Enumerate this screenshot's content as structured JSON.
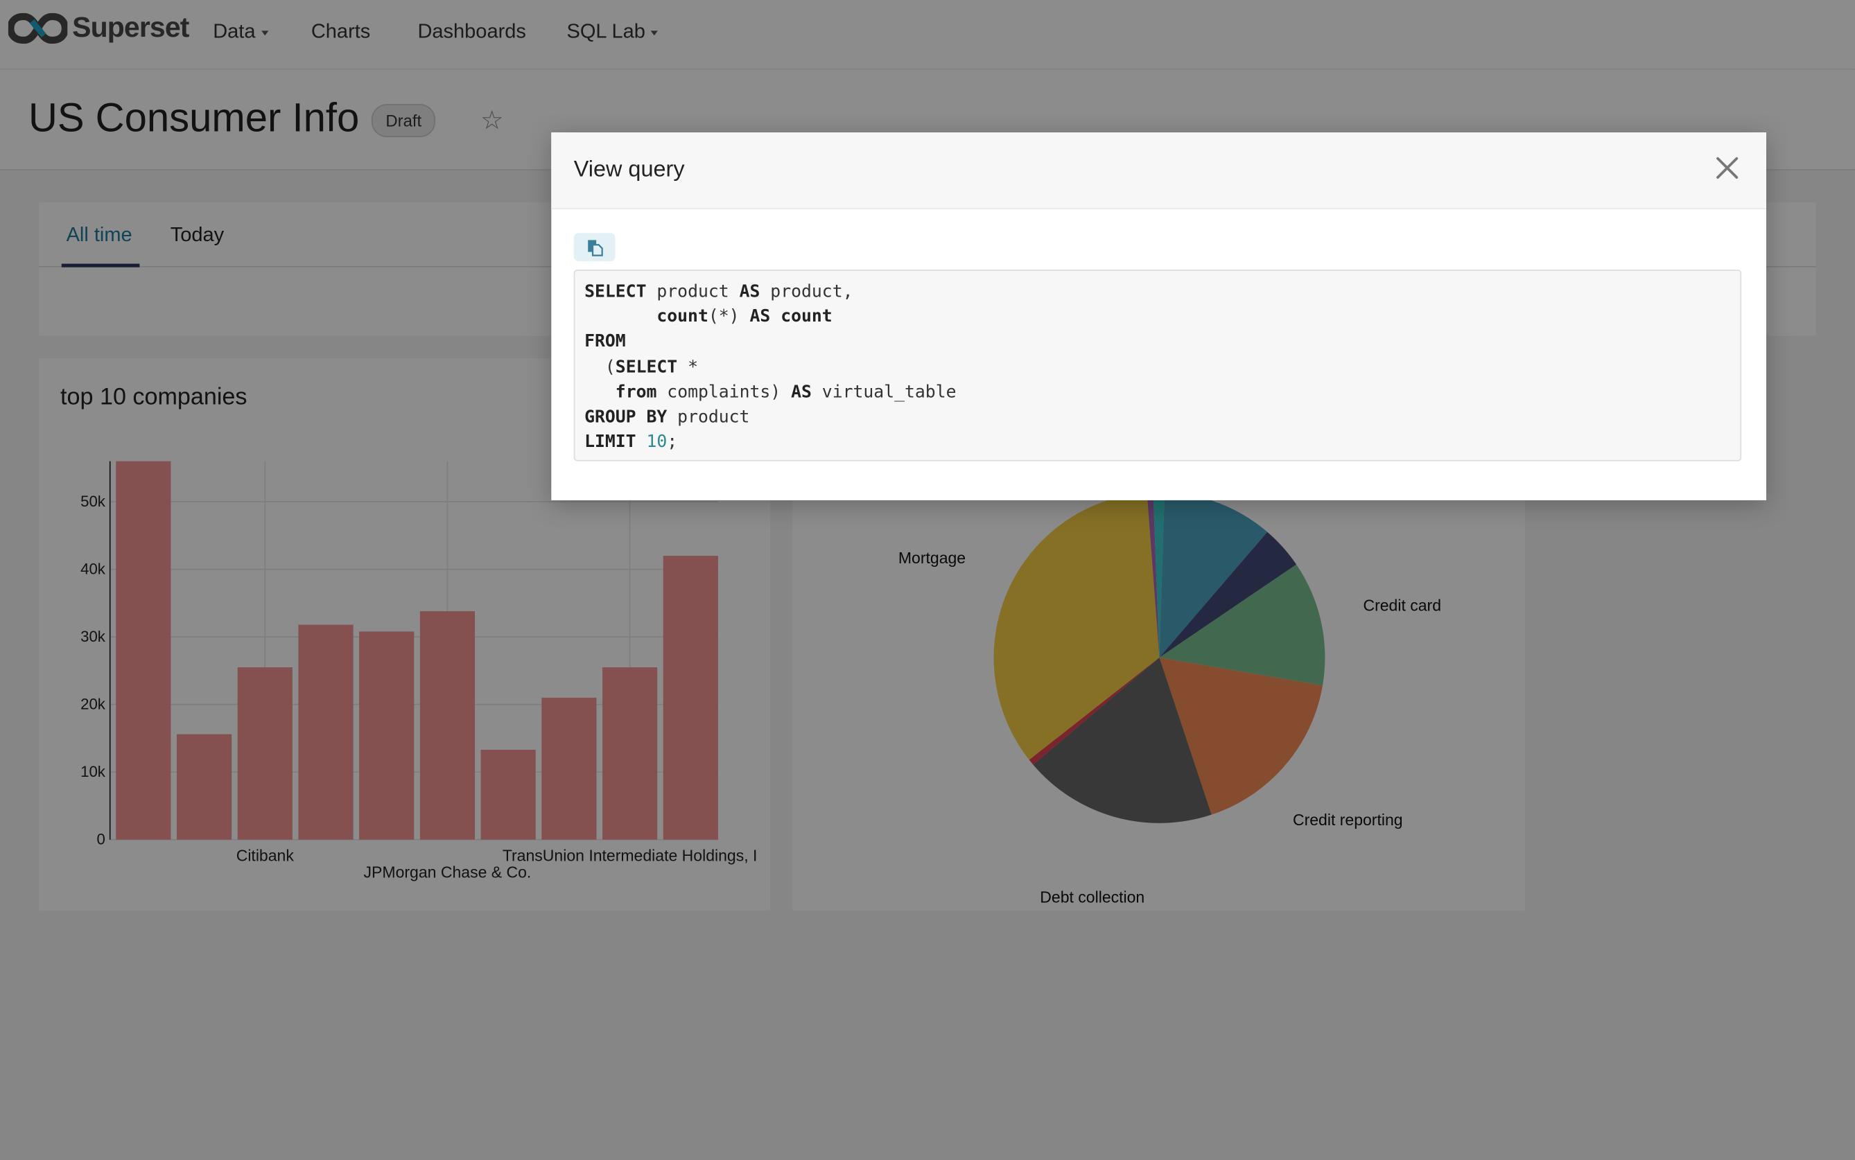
{
  "navbar": {
    "brand": "Superset",
    "items": [
      {
        "label": "Data",
        "has_dropdown": true
      },
      {
        "label": "Charts",
        "has_dropdown": false
      },
      {
        "label": "Dashboards",
        "has_dropdown": false
      },
      {
        "label": "SQL Lab",
        "has_dropdown": true
      }
    ]
  },
  "dashboard": {
    "title": "US Consumer Info",
    "status_badge": "Draft",
    "favorite_icon": "star-outline-icon"
  },
  "tabs": [
    {
      "label": "All time",
      "active": true
    },
    {
      "label": "Today",
      "active": false
    }
  ],
  "colors": {
    "accent": "#1f7a9c",
    "tab_underline": "#2d3a5e"
  },
  "modal": {
    "title": "View query",
    "close_icon": "close-icon",
    "copy_icon": "copy-icon",
    "sql": [
      [
        {
          "t": "SELECT",
          "k": true
        },
        {
          "t": " product "
        },
        {
          "t": "AS",
          "k": true
        },
        {
          "t": " product,"
        }
      ],
      [
        {
          "t": "       "
        },
        {
          "t": "count",
          "k": true
        },
        {
          "t": "(*) "
        },
        {
          "t": "AS",
          "k": true
        },
        {
          "t": " "
        },
        {
          "t": "count",
          "k": true
        }
      ],
      [
        {
          "t": "FROM",
          "k": true
        }
      ],
      [
        {
          "t": "  ("
        },
        {
          "t": "SELECT",
          "k": true
        },
        {
          "t": " *"
        }
      ],
      [
        {
          "t": "   "
        },
        {
          "t": "from",
          "k": true
        },
        {
          "t": " complaints) "
        },
        {
          "t": "AS",
          "k": true
        },
        {
          "t": " virtual_table"
        }
      ],
      [
        {
          "t": "GROUP BY",
          "k": true
        },
        {
          "t": " product"
        }
      ],
      [
        {
          "t": "LIMIT",
          "k": true
        },
        {
          "t": " "
        },
        {
          "t": "10",
          "n": true
        },
        {
          "t": ";"
        }
      ]
    ]
  },
  "chart_data": [
    {
      "type": "bar",
      "title": "top 10 companies",
      "categories": [
        "",
        "",
        "Citibank",
        "",
        "",
        "JPMorgan Chase & Co.",
        "",
        "",
        "TransUnion Intermediate Holdings, I",
        ""
      ],
      "values": [
        56000,
        15600,
        25500,
        31800,
        30800,
        33800,
        13300,
        21000,
        25500,
        42000
      ],
      "ylim": [
        0,
        56000
      ],
      "yticks": [
        "0",
        "10k",
        "20k",
        "30k",
        "40k",
        "50k"
      ],
      "ytick_values": [
        0,
        10000,
        20000,
        30000,
        40000,
        50000
      ],
      "grid": true,
      "color": "#f08e8c"
    },
    {
      "type": "pie",
      "slices": [
        {
          "label": "",
          "value": 0.5,
          "color": "#3ccccb"
        },
        {
          "label": "",
          "value": 10.8,
          "color": "#4ea4c2"
        },
        {
          "label": "",
          "value": 4.2,
          "color": "#434a75"
        },
        {
          "label": "Credit card",
          "value": 12.2,
          "color": "#79bf90"
        },
        {
          "label": "Credit reporting",
          "value": 17.2,
          "color": "#f48b56"
        },
        {
          "label": "Debt collection",
          "value": 18.9,
          "color": "#666666"
        },
        {
          "label": "",
          "value": 0.6,
          "color": "#e04355"
        },
        {
          "label": "Mortgage",
          "value": 34.4,
          "color": "#f2cc44"
        },
        {
          "label": "",
          "value": 0.6,
          "color": "#a868b7"
        },
        {
          "label": "",
          "value": 0.6,
          "color": "#3ccccb"
        }
      ]
    }
  ]
}
